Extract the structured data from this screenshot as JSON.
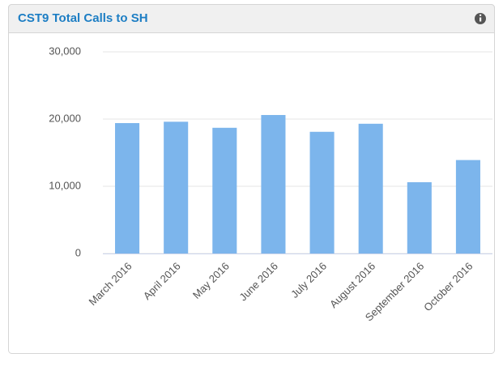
{
  "chart_data": {
    "type": "bar",
    "title": "CST9 Total Calls to SH",
    "categories": [
      "March 2016",
      "April 2016",
      "May 2016",
      "June 2016",
      "July 2016",
      "August 2016",
      "September 2016",
      "October 2016"
    ],
    "values": [
      19400,
      19600,
      18700,
      20600,
      18100,
      19300,
      10600,
      13900
    ],
    "color": "#7cb5ec",
    "ylim": [
      0,
      30000
    ],
    "yticks": [
      0,
      {
        "value": 10000,
        "label": "10,000"
      },
      {
        "value": 20000,
        "label": "20,000"
      },
      {
        "value": 30000,
        "label": "30,000"
      }
    ],
    "grid": true
  }
}
